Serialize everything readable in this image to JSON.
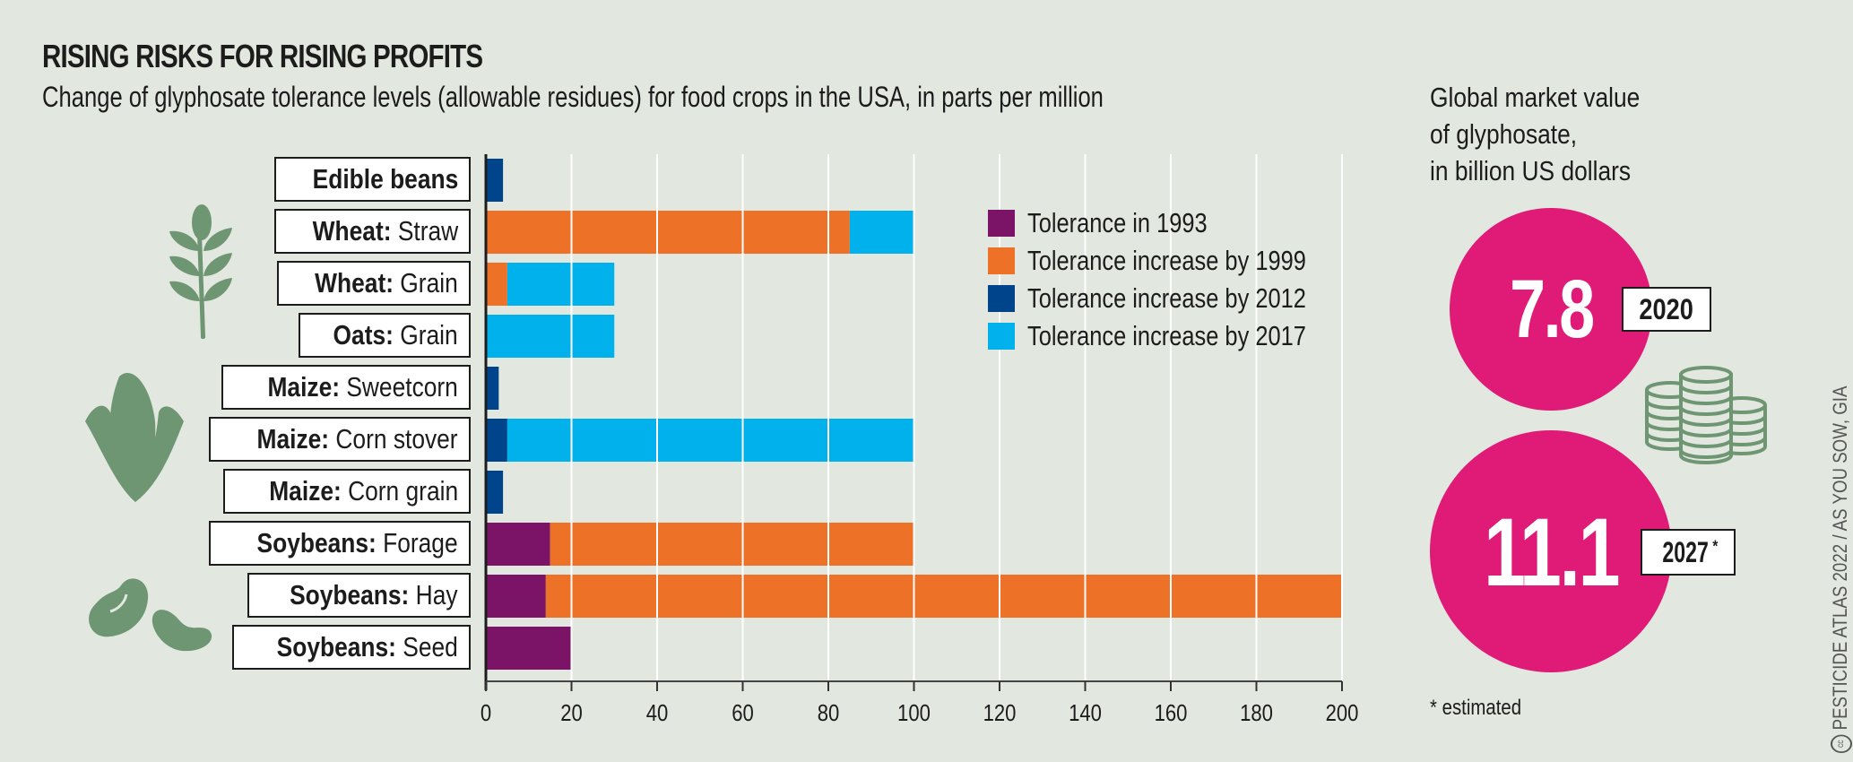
{
  "header": {
    "title": "RISING RISKS FOR RISING PROFITS",
    "subtitle": "Change of glyphosate tolerance levels (allowable residues) for food crops in the USA, in parts per million"
  },
  "chart_data": {
    "type": "bar",
    "orientation": "horizontal",
    "stacked": true,
    "title": "RISING RISKS FOR RISING PROFITS",
    "subtitle": "Change of glyphosate tolerance levels (allowable residues) for food crops in the USA, in parts per million",
    "xlabel": "",
    "ylabel": "",
    "xlim": [
      0,
      200
    ],
    "x_ticks": [
      0,
      20,
      40,
      60,
      80,
      100,
      120,
      140,
      160,
      180,
      200
    ],
    "grid": "vertical",
    "legend_position": "top-right",
    "categories": [
      {
        "crop": "Edible beans",
        "part": ""
      },
      {
        "crop": "Wheat:",
        "part": " Straw"
      },
      {
        "crop": "Wheat:",
        "part": " Grain"
      },
      {
        "crop": "Oats:",
        "part": " Grain"
      },
      {
        "crop": "Maize:",
        "part": " Sweetcorn"
      },
      {
        "crop": "Maize:",
        "part": " Corn stover"
      },
      {
        "crop": "Maize:",
        "part": " Corn grain"
      },
      {
        "crop": "Soybeans:",
        "part": " Forage"
      },
      {
        "crop": "Soybeans:",
        "part": " Hay"
      },
      {
        "crop": "Soybeans:",
        "part": " Seed"
      }
    ],
    "series": [
      {
        "name": "Tolerance in 1993",
        "color": "#7b1466",
        "values": [
          0,
          0,
          0,
          0,
          0,
          0,
          0,
          15,
          14,
          20
        ]
      },
      {
        "name": "Tolerance increase by 1999",
        "color": "#ee7128",
        "values": [
          0,
          85,
          5,
          0,
          0,
          0,
          0,
          85,
          186,
          0
        ]
      },
      {
        "name": "Tolerance increase by 2012",
        "color": "#00448b",
        "values": [
          4,
          0,
          0,
          0,
          3,
          5,
          4,
          0,
          0,
          0
        ]
      },
      {
        "name": "Tolerance increase by 2017",
        "color": "#00b1eb",
        "values": [
          0,
          15,
          25,
          30,
          0,
          95,
          0,
          0,
          0,
          0
        ]
      }
    ]
  },
  "market": {
    "title_lines": [
      "Global market value",
      "of glyphosate,",
      "in billion US dollars"
    ],
    "items": [
      {
        "value": "7.8",
        "year": "2020",
        "year_suffix": ""
      },
      {
        "value": "11.1",
        "year": "2027",
        "year_suffix": "*"
      }
    ],
    "bubble_color": "#df1b77",
    "note": "* estimated"
  },
  "icons": [
    "wheat-icon",
    "corn-icon",
    "beans-icon",
    "coins-icon",
    "cc-license-icon"
  ],
  "credit": "PESTICIDE ATLAS 2022 / AS YOU SOW, GIA"
}
